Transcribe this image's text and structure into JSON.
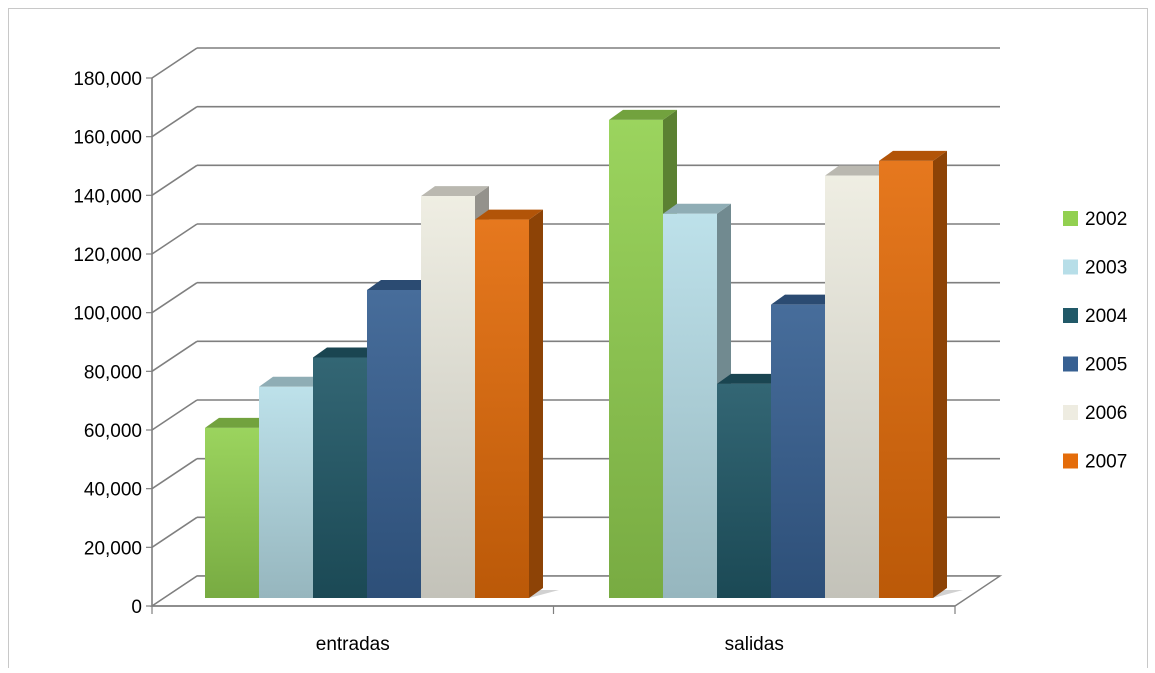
{
  "chart_data": {
    "type": "bar",
    "variant": "3d-clustered-column",
    "categories": [
      "entradas",
      "salidas"
    ],
    "series": [
      {
        "name": "2002",
        "values": [
          58000,
          163000
        ],
        "color": "#92D050"
      },
      {
        "name": "2003",
        "values": [
          72000,
          131000
        ],
        "color": "#B7DEE8"
      },
      {
        "name": "2004",
        "values": [
          82000,
          73000
        ],
        "color": "#215968"
      },
      {
        "name": "2005",
        "values": [
          105000,
          100000
        ],
        "color": "#376092"
      },
      {
        "name": "2006",
        "values": [
          137000,
          144000
        ],
        "color": "#EEECE1"
      },
      {
        "name": "2007",
        "values": [
          129000,
          149000
        ],
        "color": "#E46C0A"
      }
    ],
    "yticks": [
      "0",
      "20,000",
      "40,000",
      "60,000",
      "80,000",
      "100,000",
      "120,000",
      "140,000",
      "160,000",
      "180,000"
    ],
    "ylim": [
      0,
      180000
    ],
    "grid": true,
    "legend": "right"
  }
}
